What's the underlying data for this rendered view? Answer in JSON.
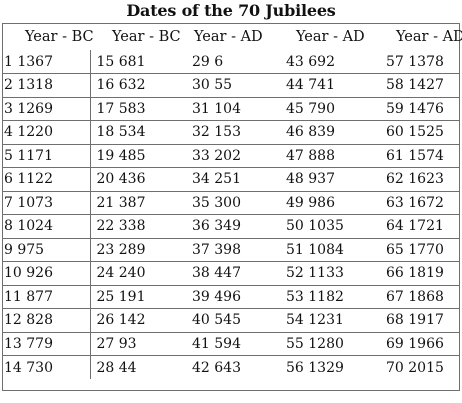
{
  "title": "Dates of the 70 Jubilees",
  "headers": [
    "Year - BC",
    "Year - BC",
    "Year - AD",
    "Year - AD",
    "Year - AD"
  ],
  "rows": [
    [
      "1 1367",
      "15 681",
      "29 6",
      "43 692",
      "57 1378"
    ],
    [
      "2 1318",
      "16 632",
      "30 55",
      "44 741",
      "58 1427"
    ],
    [
      "3 1269",
      "17 583",
      "31 104",
      "45 790",
      "59 1476"
    ],
    [
      "4 1220",
      "18 534",
      "32 153",
      "46 839",
      "60 1525"
    ],
    [
      "5 1171",
      "19 485",
      "33 202",
      "47 888",
      "61 1574"
    ],
    [
      "6 1122",
      "20 436",
      "34 251",
      "48 937",
      "62 1623"
    ],
    [
      "7 1073",
      "21 387",
      "35 300",
      "49 986",
      "63 1672"
    ],
    [
      "8 1024",
      "22 338",
      "36 349",
      "50 1035",
      "64 1721"
    ],
    [
      "9 975",
      "23 289",
      "37 398",
      "51 1084",
      "65 1770"
    ],
    [
      "10 926",
      "24 240",
      "38 447",
      "52 1133",
      "66 1819"
    ],
    [
      "11 877",
      "25 191",
      "39 496",
      "53 1182",
      "67 1868"
    ],
    [
      "12 828",
      "26 142",
      "40 545",
      "54 1231",
      "68 1917"
    ],
    [
      "13 779",
      "27 93",
      "41 594",
      "55 1280",
      "69 1966"
    ],
    [
      "14 730",
      "28 44",
      "42 643",
      "56 1329",
      "70 2015"
    ]
  ]
}
